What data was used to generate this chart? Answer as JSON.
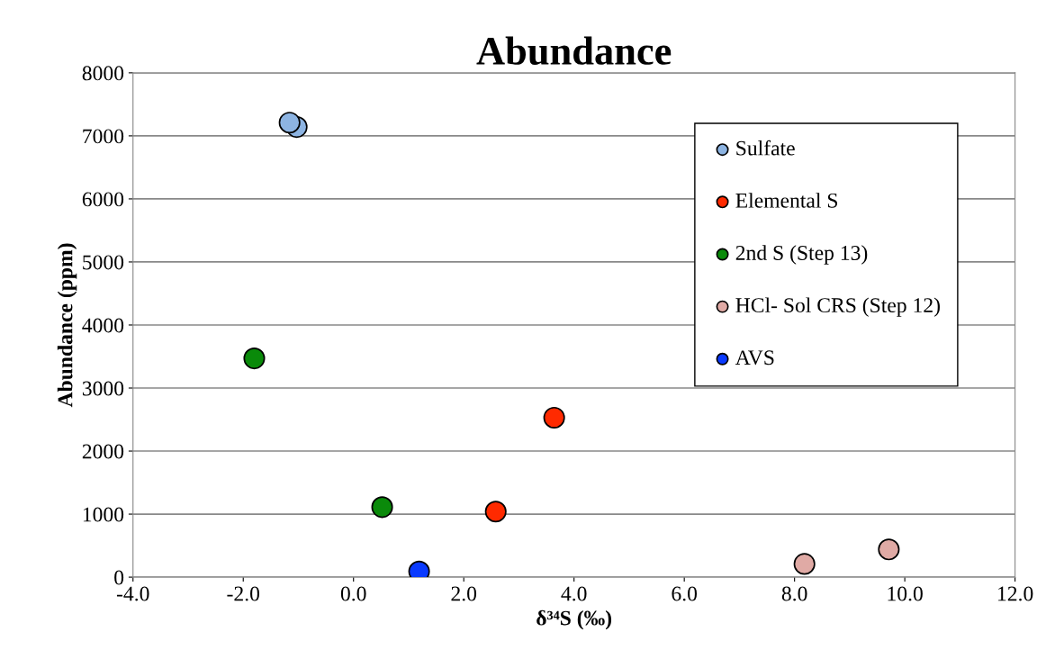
{
  "chart_data": {
    "type": "scatter",
    "title": "Abundance",
    "xlabel": "δ³⁴S (‰)",
    "ylabel": "Abundance (ppm)",
    "series": [
      {
        "name": "Sulfate",
        "color": "#8db4e2",
        "x": [
          -1.16,
          -1.03
        ],
        "values": [
          7210,
          7140
        ]
      },
      {
        "name": "Elemental S",
        "color": "#ff2a00",
        "x": [
          3.64,
          2.58
        ],
        "values": [
          2530,
          1040
        ]
      },
      {
        "name": "2nd S (Step 13)",
        "color": "#0a8a0a",
        "x": [
          -1.8,
          0.52
        ],
        "values": [
          3470,
          1110
        ]
      },
      {
        "name": "HCl- Sol CRS (Step 12)",
        "color": "#e0aaa5",
        "x": [
          8.18,
          9.71
        ],
        "values": [
          210,
          440
        ]
      },
      {
        "name": "AVS",
        "color": "#0a3aff",
        "x": [
          1.19
        ],
        "values": [
          90
        ]
      }
    ],
    "xlim": [
      -4,
      12
    ],
    "xticks": [
      {
        "value": -4,
        "label": "-4.0"
      },
      {
        "value": -2,
        "label": "-2.0"
      },
      {
        "value": 0,
        "label": "0.0"
      },
      {
        "value": 2,
        "label": "2.0"
      },
      {
        "value": 4,
        "label": "4.0"
      },
      {
        "value": 6,
        "label": "6.0"
      },
      {
        "value": 8,
        "label": "8.0"
      },
      {
        "value": 10,
        "label": "10.0"
      },
      {
        "value": 12,
        "label": "12.0"
      }
    ],
    "ylim": [
      0,
      8000
    ],
    "yticks": [
      0,
      1000,
      2000,
      3000,
      4000,
      5000,
      6000,
      7000,
      8000
    ],
    "grid": "y",
    "legend": "top right",
    "marker": "circle"
  }
}
